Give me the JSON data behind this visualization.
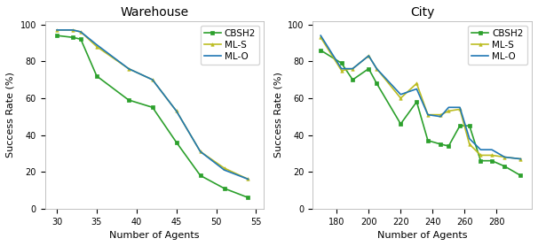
{
  "warehouse": {
    "title": "Warehouse",
    "xlabel": "Number of Agents",
    "ylabel": "Success Rate (%)",
    "xlim": [
      28.5,
      56
    ],
    "ylim": [
      0,
      102
    ],
    "xticks": [
      30,
      35,
      40,
      45,
      50,
      55
    ],
    "yticks": [
      0,
      20,
      40,
      60,
      80,
      100
    ],
    "series": {
      "CBSH2": {
        "x": [
          30,
          32,
          33,
          35,
          39,
          42,
          45,
          48,
          51,
          54
        ],
        "y": [
          94,
          93,
          92,
          72,
          59,
          55,
          36,
          18,
          11,
          6
        ],
        "color": "#2ca02c",
        "marker": "s",
        "markersize": 2.5,
        "linewidth": 1.2
      },
      "ML-S": {
        "x": [
          30,
          32,
          33,
          35,
          39,
          42,
          45,
          48,
          51,
          54
        ],
        "y": [
          97,
          97,
          96,
          88,
          76,
          70,
          53,
          31,
          22,
          16
        ],
        "color": "#bcbd22",
        "marker": "^",
        "markersize": 2.5,
        "linewidth": 1.2
      },
      "ML-O": {
        "x": [
          30,
          32,
          33,
          35,
          39,
          42,
          45,
          48,
          51,
          54
        ],
        "y": [
          97,
          97,
          96,
          89,
          76,
          70,
          53,
          31,
          21,
          16
        ],
        "color": "#1f77b4",
        "marker": "",
        "markersize": 2.5,
        "linewidth": 1.2
      }
    }
  },
  "city": {
    "title": "City",
    "xlabel": "Number of Agents",
    "ylabel": "Success Rate (%)",
    "xlim": [
      165,
      302
    ],
    "ylim": [
      0,
      102
    ],
    "xticks": [
      180,
      200,
      220,
      240,
      260,
      280
    ],
    "yticks": [
      0,
      20,
      40,
      60,
      80,
      100
    ],
    "series": {
      "CBSH2": {
        "x": [
          170,
          183,
          190,
          200,
          205,
          220,
          230,
          237,
          245,
          250,
          257,
          263,
          270,
          277,
          285,
          295
        ],
        "y": [
          86,
          79,
          70,
          76,
          68,
          46,
          58,
          37,
          35,
          34,
          45,
          45,
          26,
          26,
          23,
          18
        ],
        "color": "#2ca02c",
        "marker": "s",
        "markersize": 2.5,
        "linewidth": 1.2
      },
      "ML-S": {
        "x": [
          170,
          183,
          190,
          200,
          205,
          220,
          230,
          237,
          245,
          250,
          257,
          263,
          270,
          277,
          285,
          295
        ],
        "y": [
          93,
          75,
          76,
          83,
          76,
          60,
          68,
          51,
          51,
          53,
          54,
          35,
          29,
          29,
          28,
          27
        ],
        "color": "#bcbd22",
        "marker": "^",
        "markersize": 2.5,
        "linewidth": 1.2
      },
      "ML-O": {
        "x": [
          170,
          183,
          190,
          200,
          205,
          220,
          230,
          237,
          245,
          250,
          257,
          263,
          270,
          277,
          285,
          295
        ],
        "y": [
          94,
          76,
          76,
          83,
          76,
          62,
          65,
          51,
          50,
          55,
          55,
          38,
          32,
          32,
          28,
          27
        ],
        "color": "#1f77b4",
        "marker": "",
        "markersize": 2.5,
        "linewidth": 1.2
      }
    }
  },
  "legend_order": [
    "CBSH2",
    "ML-S",
    "ML-O"
  ],
  "background_color": "#ffffff",
  "title_fontsize": 10,
  "label_fontsize": 8,
  "tick_fontsize": 7,
  "legend_fontsize": 7.5
}
